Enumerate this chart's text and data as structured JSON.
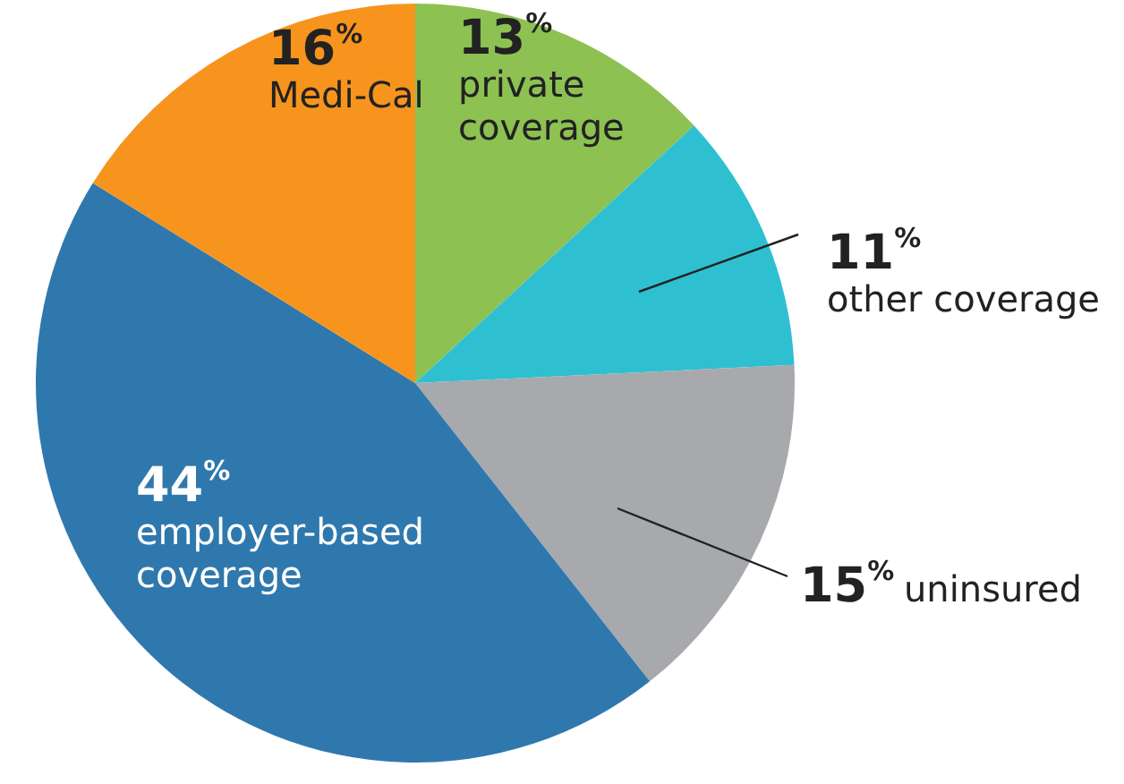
{
  "chart_data": {
    "type": "pie",
    "categories": [
      "private coverage",
      "other coverage",
      "uninsured",
      "employer-based coverage",
      "Medi-Cal"
    ],
    "values": [
      13,
      11,
      15,
      44,
      16
    ],
    "value_labels": [
      "13$^{%}$",
      "11$^{%}$",
      "15$^{%}$",
      "44$^{%}$",
      "16$^{%}$"
    ],
    "colors": [
      "#8dc152",
      "#2ec0d1",
      "#a7a9ac",
      "#2f78ad",
      "#f7941e"
    ]
  }
}
